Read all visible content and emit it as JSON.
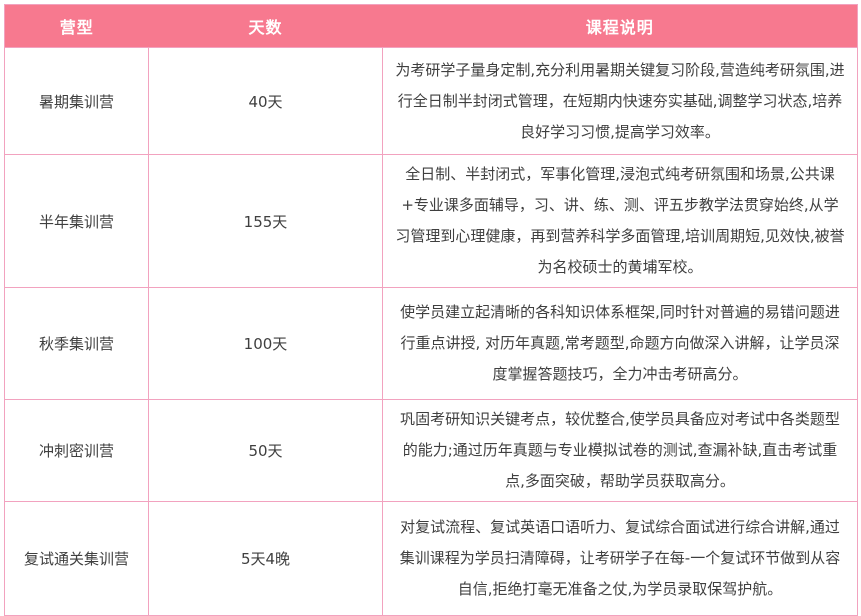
{
  "colors": {
    "header_bg": "#f7798f",
    "header_text": "#ffffff",
    "grid_border": "#f2a2bf",
    "body_text": "#3f3f3f",
    "page_bg": "#ffffff"
  },
  "table": {
    "columns": [
      {
        "key": "type",
        "label": "营型"
      },
      {
        "key": "days",
        "label": "天数"
      },
      {
        "key": "desc",
        "label": "课程说明"
      }
    ],
    "rows": [
      {
        "type": "暑期集训营",
        "days": "40天",
        "desc": "为考研学子量身定制,充分利用暑期关键复习阶段,营造纯考研氛围,进行全日制半封闭式管理，在短期内快速夯实基础,调整学习状态,培养良好学习习惯,提高学习效率。"
      },
      {
        "type": "半年集训营",
        "days": "155天",
        "desc": "全日制、半封闭式，军事化管理,浸泡式纯考研氛围和场景,公共课+专业课多面辅导，习、讲、练、测、评五步教学法贯穿始终,从学习管理到心理健康，再到营养科学多面管理,培训周期短,见效快,被誉为名校硕士的黄埔军校。"
      },
      {
        "type": "秋季集训营",
        "days": "100天",
        "desc": "使学员建立起清晰的各科知识体系框架,同时针对普遍的易错问题进行重点讲授, 对历年真题,常考题型,命题方向做深入讲解，让学员深度掌握答题技巧，全力冲击考研高分。"
      },
      {
        "type": "冲刺密训营",
        "days": "50天",
        "desc": "巩固考研知识关键考点，较优整合,使学员具备应对考试中各类题型的能力;通过历年真题与专业模拟试卷的测试,查漏补缺,直击考试重点,多面突破，帮助学员获取高分。"
      },
      {
        "type": "复试通关集训营",
        "days": "5天4晚",
        "desc": "对复试流程、复试英语口语听力、复试综合面试进行综合讲解,通过集训课程为学员扫清障碍，让考研学子在每-一个复试环节做到从容自信,拒绝打毫无准备之仗,为学员录取保驾护航。"
      }
    ]
  }
}
